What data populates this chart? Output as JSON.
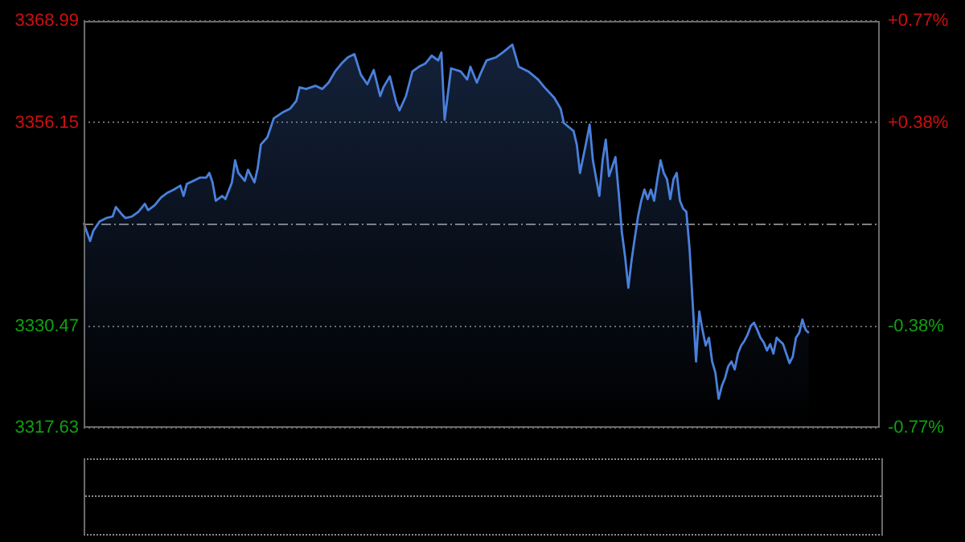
{
  "chart_data": {
    "type": "area",
    "categories": [
      null,
      null,
      null,
      null,
      null,
      null,
      null,
      null,
      null,
      null,
      null,
      null,
      null,
      null,
      null,
      null,
      null,
      null,
      null,
      null,
      null,
      null,
      null,
      null,
      null,
      null,
      null,
      null,
      null,
      null,
      null,
      null,
      null,
      null,
      null,
      null,
      null,
      null,
      null,
      null,
      null,
      null,
      null,
      null,
      null,
      null,
      null,
      null,
      null,
      null,
      null,
      null,
      null,
      null,
      null,
      null,
      null,
      null,
      null,
      null,
      null,
      null,
      null,
      null,
      null,
      null,
      null,
      null,
      null,
      null,
      null,
      null,
      null,
      null,
      null,
      null,
      null,
      null,
      null,
      null,
      null,
      null,
      null,
      null,
      null,
      null,
      null,
      null,
      null,
      null,
      null,
      null,
      null,
      null,
      null,
      null,
      null,
      null,
      null,
      null,
      null,
      null,
      null,
      null,
      null,
      null,
      null,
      null,
      null,
      null,
      null,
      null,
      null,
      null,
      null,
      null,
      null,
      null,
      null,
      null,
      null,
      null,
      null,
      null,
      null,
      null,
      null,
      null,
      null,
      null,
      null,
      null,
      null,
      null,
      null,
      null,
      null,
      null,
      null,
      null,
      null,
      null,
      null,
      null,
      null,
      null,
      null,
      null,
      null,
      null,
      null,
      null,
      null,
      null,
      null,
      null,
      null,
      null,
      null,
      null,
      null,
      null,
      null,
      null,
      null,
      null,
      null,
      null,
      null,
      null,
      null,
      null,
      null,
      null,
      null,
      null,
      null,
      null,
      null,
      null,
      null,
      null,
      null,
      null,
      null,
      null,
      null,
      null,
      null,
      null,
      null,
      null,
      null,
      null,
      null,
      null,
      null,
      null,
      null,
      null,
      null,
      null,
      null,
      null,
      null,
      null,
      null,
      null,
      null,
      null,
      null,
      null,
      null,
      null,
      null,
      null,
      null,
      null,
      null,
      null,
      null,
      null,
      null,
      null,
      null,
      null,
      null,
      null,
      null,
      null,
      null,
      null,
      null,
      null,
      null,
      null,
      null,
      null,
      null,
      null,
      null,
      null,
      null,
      null,
      null,
      null,
      null,
      null
    ],
    "series": [
      {
        "color": "#4a80dc",
        "values": [
          3343.5,
          null,
          3341.2,
          3342.5,
          null,
          3343.7,
          null,
          3344.1,
          null,
          3344.3,
          3345.5,
          null,
          3344.5,
          3344.1,
          null,
          3344.3,
          null,
          3344.9,
          null,
          3345.9,
          3345.1,
          null,
          3345.7,
          null,
          3346.7,
          null,
          3347.3,
          null,
          3347.7,
          null,
          3348.2,
          3346.9,
          3348.4,
          null,
          3348.8,
          null,
          3349.2,
          null,
          3349.2,
          3349.8,
          3348.6,
          3346.3,
          null,
          3346.9,
          3346.5,
          null,
          3348.6,
          3351.4,
          3349.8,
          null,
          3348.8,
          3350.2,
          null,
          3348.6,
          3350.4,
          3353.4,
          null,
          3354.3,
          null,
          3356.7,
          null,
          null,
          3357.5,
          null,
          3357.9,
          null,
          3358.9,
          3360.6,
          null,
          3360.4,
          null,
          null,
          3360.8,
          null,
          3360.4,
          null,
          3361.2,
          null,
          3362.6,
          null,
          3363.6,
          null,
          3364.4,
          null,
          3364.8,
          null,
          3362.2,
          null,
          3361.0,
          null,
          3362.8,
          null,
          3359.5,
          3360.6,
          null,
          3362.0,
          null,
          3358.7,
          3357.7,
          null,
          3359.5,
          null,
          3362.6,
          null,
          3363.2,
          null,
          3363.6,
          null,
          3364.6,
          null,
          3364.0,
          3365.0,
          3356.5,
          null,
          3363.0,
          null,
          null,
          3362.6,
          null,
          3361.6,
          3363.2,
          null,
          3361.2,
          3362.2,
          null,
          3364.0,
          null,
          null,
          3364.4,
          null,
          3365.0,
          null,
          null,
          3366.0,
          null,
          3363.2,
          null,
          null,
          3362.6,
          null,
          null,
          3361.6,
          null,
          3360.6,
          null,
          null,
          3359.3,
          null,
          3357.9,
          3356.1,
          null,
          null,
          3355.1,
          3353.4,
          3349.8,
          null,
          3353.8,
          3355.9,
          3351.4,
          null,
          3346.9,
          3351.4,
          3354.0,
          3349.4,
          null,
          3351.8,
          3347.3,
          3342.3,
          3339.2,
          3335.3,
          3338.8,
          3341.6,
          3344.3,
          3346.3,
          3347.7,
          3346.5,
          3347.7,
          3346.3,
          3349.0,
          3351.4,
          3349.8,
          3349.0,
          3346.5,
          3349.0,
          3349.8,
          3346.3,
          3345.3,
          3344.9,
          3340.2,
          3333.1,
          3326.0,
          3332.3,
          3330.0,
          3328.0,
          3329.0,
          3326.0,
          3324.6,
          3321.3,
          3322.9,
          3323.9,
          3325.4,
          3326.0,
          3325.0,
          3327.0,
          3328.0,
          3328.6,
          3329.4,
          3330.5,
          3330.9,
          3330.0,
          3329.0,
          3328.4,
          3327.4,
          3328.2,
          3327.0,
          3329.0,
          3328.6,
          3328.2,
          3327.0,
          3325.8,
          3326.6,
          3329.0,
          3329.6,
          3331.3,
          3330.0,
          3329.6,
          null,
          null,
          null,
          null,
          null,
          null,
          null,
          null,
          null,
          null,
          null,
          null,
          null,
          null,
          null,
          null,
          null,
          null,
          null,
          null,
          null,
          null
        ]
      }
    ],
    "ylim": [
      3317.63,
      3368.99
    ],
    "yticks": [
      3317.63,
      3330.47,
      3356.15,
      3368.99
    ],
    "y2lim": [
      -0.768,
      0.768
    ],
    "y2ticks": [
      {
        "value": -0.768,
        "label": "-0.77%"
      },
      {
        "value": -0.384,
        "label": "-0.38%"
      },
      {
        "value": 0.384,
        "label": "+0.38%"
      },
      {
        "value": 0.768,
        "label": "+0.77%"
      }
    ],
    "ref_lines": [
      {
        "axis": "y",
        "value": 3343.31,
        "color": "#808080",
        "line_style": "dashdot"
      }
    ],
    "grid": "y",
    "legend": false
  }
}
